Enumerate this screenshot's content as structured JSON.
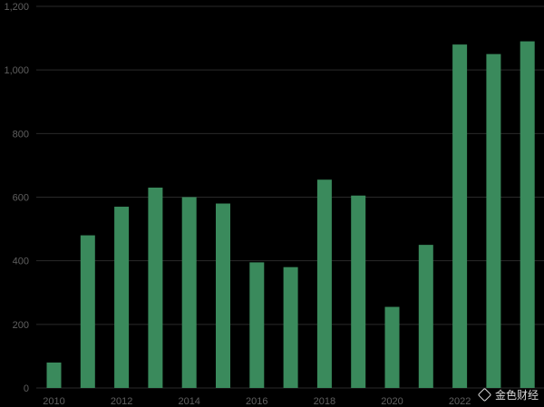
{
  "chart_data": {
    "type": "bar",
    "title": "",
    "xlabel": "",
    "ylabel": "",
    "categories": [
      "2010",
      "2011",
      "2012",
      "2013",
      "2014",
      "2015",
      "2016",
      "2017",
      "2018",
      "2019",
      "2020",
      "2021",
      "2022",
      "2023",
      "2024"
    ],
    "values": [
      80,
      480,
      570,
      630,
      600,
      580,
      395,
      380,
      655,
      605,
      255,
      450,
      1080,
      1050,
      1090
    ],
    "x_tick_labels": [
      "2010",
      "2012",
      "2014",
      "2016",
      "2018",
      "2020",
      "2022"
    ],
    "y_ticks": [
      0,
      200,
      400,
      600,
      800,
      1000,
      1200
    ],
    "y_tick_labels": [
      "0",
      "200",
      "400",
      "600",
      "800",
      "1,000",
      "1,200"
    ],
    "ylim": [
      0,
      1200
    ],
    "grid": true,
    "legend": "none",
    "colors": {
      "bar": "#3a8a5c",
      "background": "#000000",
      "grid": "#2a2a2a",
      "tick": "#5f5f5f"
    }
  },
  "watermark": {
    "text": "金色财经",
    "icon": "diamond-logo-icon"
  }
}
